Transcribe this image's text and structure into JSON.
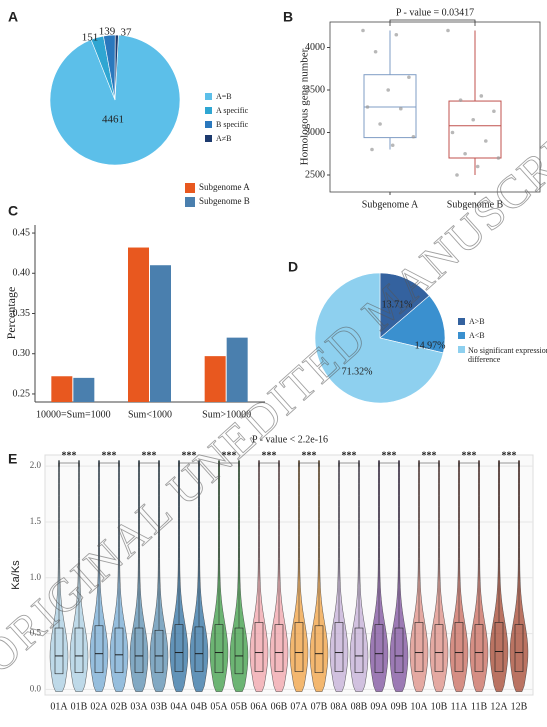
{
  "chart_data": [
    {
      "label": "A",
      "type": "pie",
      "categories": [
        "A=B",
        "A specific",
        "B specific",
        "A≠B"
      ],
      "values": [
        4461,
        151,
        139,
        37
      ],
      "colors": [
        "#5cbfe9",
        "#2fa6d2",
        "#2a78bd",
        "#1d3a6e"
      ]
    },
    {
      "label": "B",
      "type": "box",
      "annotation": "P - value = 0.03417",
      "ylabel": "Homologous gene number",
      "categories": [
        "Subgenome A",
        "Subgenome B"
      ],
      "colors": [
        "#7f9cc4",
        "#c0504d"
      ],
      "min": [
        2800,
        2500
      ],
      "q1": [
        2940,
        2700
      ],
      "median": [
        3300,
        3080
      ],
      "q3": [
        3680,
        3370
      ],
      "max": [
        4200,
        4200
      ],
      "points": [
        [
          4200,
          4150,
          3950,
          3650,
          3500,
          3300,
          3280,
          3100,
          2950,
          2850,
          2800
        ],
        [
          4200,
          3430,
          3380,
          3250,
          3150,
          3000,
          2900,
          2750,
          2700,
          2600,
          2500
        ]
      ],
      "ylim": [
        2300,
        4300
      ],
      "yticks": [
        2500,
        3000,
        3500,
        4000
      ]
    },
    {
      "label": "C",
      "type": "bar",
      "ylabel": "Percentage",
      "categories": [
        "10000=Sum=1000",
        "Sum<1000",
        "Sum>10000"
      ],
      "series": [
        {
          "name": "Subgenome A",
          "color": "#e8581f",
          "values": [
            0.272,
            0.432,
            0.297
          ]
        },
        {
          "name": "Subgenome B",
          "color": "#4a7fae",
          "values": [
            0.27,
            0.41,
            0.32
          ]
        }
      ],
      "ylim": [
        0.24,
        0.46
      ],
      "yticks": [
        {
          "value": 0.25,
          "label": "0.25"
        },
        {
          "value": 0.3,
          "label": "0.30"
        },
        {
          "value": 0.35,
          "label": "0.35"
        },
        {
          "value": 0.4,
          "label": "0.40"
        },
        {
          "value": 0.45,
          "label": "0.45"
        }
      ]
    },
    {
      "label": "D",
      "type": "pie",
      "categories": [
        "A>B",
        "A<B",
        "No significant expression difference"
      ],
      "values": [
        13.71,
        14.97,
        71.32
      ],
      "value_labels": [
        "13.71%",
        "14.97%",
        "71.32%"
      ],
      "colors": [
        "#34629f",
        "#3a90cf",
        "#8ed0ef"
      ]
    },
    {
      "label": "E",
      "type": "violin",
      "annotation": "P - value < 2.2e-16",
      "ylabel": "Ka/Ks",
      "significance": [
        "***",
        "***",
        "***",
        "***",
        "***",
        "***",
        "***",
        "***",
        "***",
        "***",
        "***",
        "***"
      ],
      "categories": [
        "01A",
        "01B",
        "02A",
        "02B",
        "03A",
        "03B",
        "04A",
        "04B",
        "05A",
        "05B",
        "06A",
        "06B",
        "07A",
        "07B",
        "08A",
        "08B",
        "09A",
        "09B",
        "10A",
        "10B",
        "11A",
        "11B",
        "12A",
        "12B"
      ],
      "colors": [
        "#a9cde2",
        "#a9cde2",
        "#74aad3",
        "#74aad3",
        "#5a8db0",
        "#5a8db0",
        "#2f70a2",
        "#2f70a2",
        "#3c9c45",
        "#3c9c45",
        "#f0a3aa",
        "#f0a3aa",
        "#f0a040",
        "#f0a040",
        "#c3aed6",
        "#c3aed6",
        "#7c4f9c",
        "#7c4f9c",
        "#dc8e84",
        "#dc8e84",
        "#c86a5c",
        "#c86a5c",
        "#a4452f",
        "#a4452f"
      ],
      "q1": [
        0.14,
        0.15,
        0.15,
        0.15,
        0.15,
        0.15,
        0.16,
        0.16,
        0.15,
        0.14,
        0.16,
        0.16,
        0.16,
        0.15,
        0.16,
        0.15,
        0.15,
        0.15,
        0.16,
        0.16,
        0.16,
        0.16,
        0.16,
        0.16
      ],
      "median": [
        0.3,
        0.3,
        0.32,
        0.31,
        0.3,
        0.3,
        0.33,
        0.32,
        0.33,
        0.3,
        0.33,
        0.33,
        0.33,
        0.32,
        0.33,
        0.3,
        0.32,
        0.3,
        0.33,
        0.33,
        0.33,
        0.33,
        0.34,
        0.33
      ],
      "q3": [
        0.55,
        0.55,
        0.57,
        0.55,
        0.55,
        0.53,
        0.58,
        0.56,
        0.58,
        0.55,
        0.6,
        0.58,
        0.6,
        0.57,
        0.6,
        0.55,
        0.58,
        0.55,
        0.6,
        0.58,
        0.6,
        0.58,
        0.6,
        0.58
      ],
      "max": [
        2.05,
        2.05,
        2.05,
        2.05,
        2.05,
        2.05,
        2.05,
        2.05,
        2.05,
        2.05,
        2.05,
        2.05,
        2.05,
        2.05,
        2.05,
        2.05,
        2.05,
        2.05,
        2.05,
        2.05,
        2.05,
        2.05,
        2.05,
        2.05
      ],
      "ylim": [
        -0.05,
        2.1
      ],
      "yticks": [
        {
          "value": 0,
          "label": "0.0"
        },
        {
          "value": 0.5,
          "label": "0.5"
        },
        {
          "value": 1,
          "label": "1.0"
        },
        {
          "value": 1.5,
          "label": "1.5"
        },
        {
          "value": 2,
          "label": "2.0"
        }
      ]
    }
  ],
  "watermark": "ORIGINAL UNEDITED MANUSCRIPT"
}
